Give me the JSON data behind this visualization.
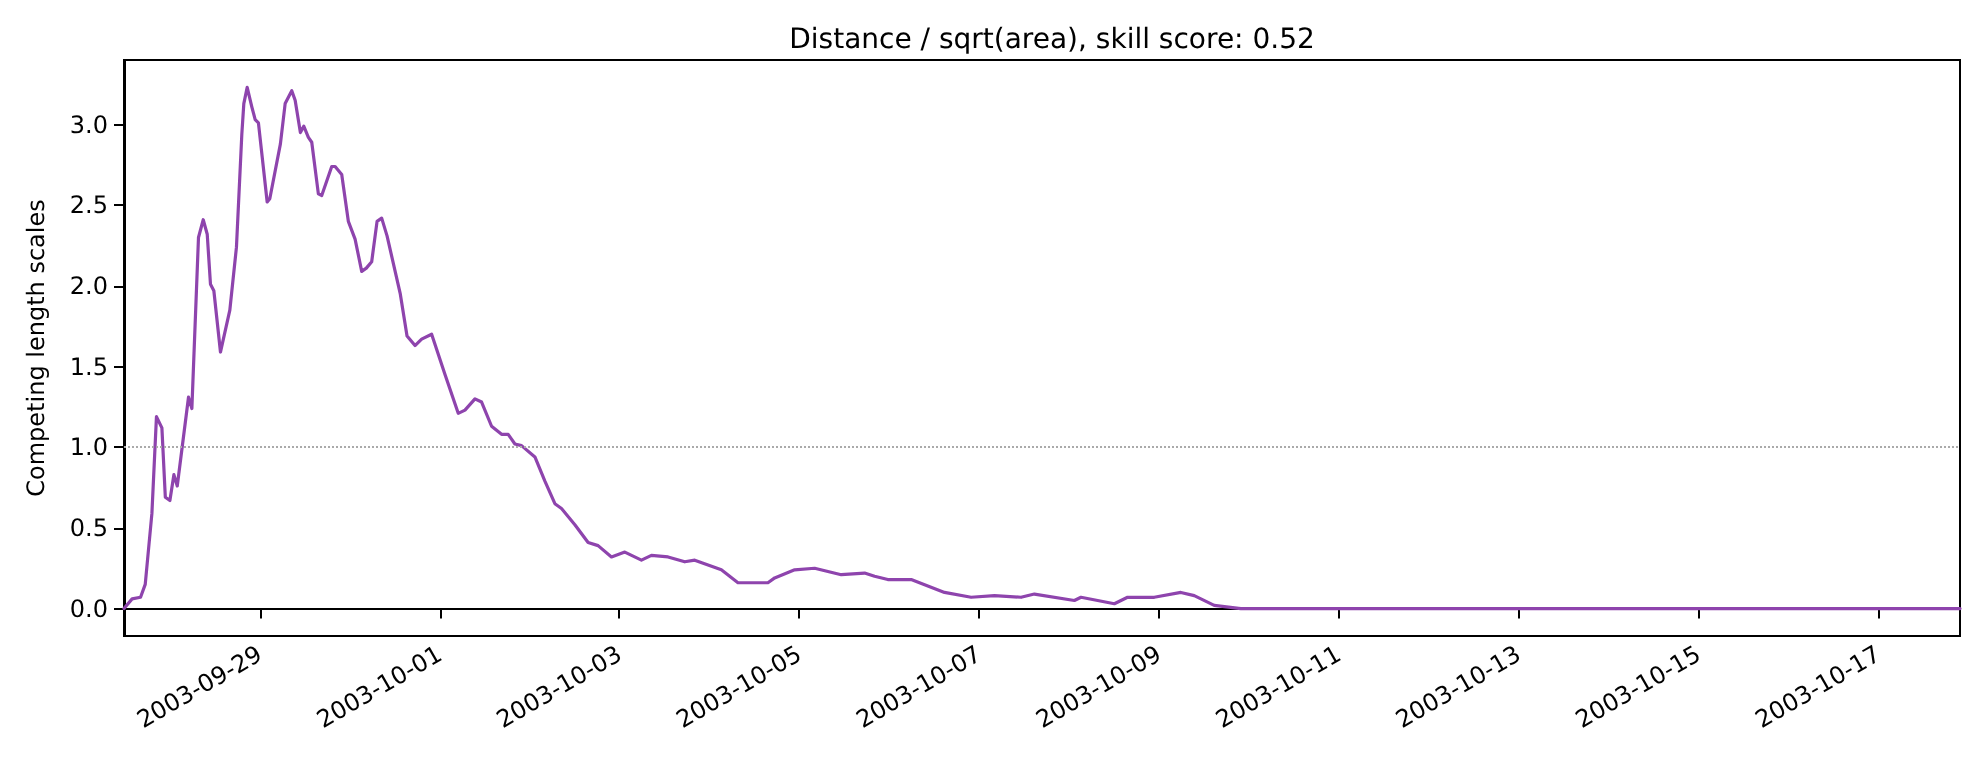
{
  "chart_data": {
    "type": "line",
    "title": "Distance / sqrt(area), skill score: 0.52",
    "ylabel": "Competing length scales",
    "x": [
      "2003-09-27T11:45",
      "2003-09-27T13:55",
      "2003-09-27T16:10",
      "2003-09-27T17:25",
      "2003-09-27T19:12",
      "2003-09-27T20:25",
      "2003-09-27T21:52",
      "2003-09-27T22:47",
      "2003-09-28T00:00",
      "2003-09-28T01:04",
      "2003-09-28T01:58",
      "2003-09-28T04:58",
      "2003-09-28T05:52",
      "2003-09-28T07:38",
      "2003-09-28T08:54",
      "2003-09-28T09:58",
      "2003-09-28T10:50",
      "2003-09-28T11:44",
      "2003-09-28T13:30",
      "2003-09-28T16:00",
      "2003-09-28T17:46",
      "2003-09-28T19:12",
      "2003-09-28T19:44",
      "2003-09-28T20:38",
      "2003-09-28T21:52",
      "2003-09-28T22:46",
      "2003-09-28T23:38",
      "2003-09-29T01:58",
      "2003-09-29T02:40",
      "2003-09-29T05:30",
      "2003-09-29T06:46",
      "2003-09-29T08:32",
      "2003-09-29T09:26",
      "2003-09-29T10:50",
      "2003-09-29T11:44",
      "2003-09-29T12:58",
      "2003-09-29T13:52",
      "2003-09-29T15:38",
      "2003-09-29T16:32",
      "2003-09-29T19:12",
      "2003-09-29T20:06",
      "2003-09-29T21:52",
      "2003-09-29T23:38",
      "2003-09-30T01:26",
      "2003-09-30T03:12",
      "2003-09-30T04:26",
      "2003-09-30T05:52",
      "2003-09-30T07:18",
      "2003-09-30T08:32",
      "2003-09-30T09:58",
      "2003-09-30T13:30",
      "2003-09-30T15:18",
      "2003-09-30T17:26",
      "2003-09-30T19:12",
      "2003-09-30T21:52",
      "2003-10-01T01:26",
      "2003-10-01T04:58",
      "2003-10-01T06:46",
      "2003-10-01T09:26",
      "2003-10-01T11:12",
      "2003-10-01T13:52",
      "2003-10-01T16:32",
      "2003-10-01T18:18",
      "2003-10-01T20:06",
      "2003-10-01T21:52",
      "2003-10-02T01:26",
      "2003-10-02T04:06",
      "2003-10-02T06:46",
      "2003-10-02T08:32",
      "2003-10-02T12:06",
      "2003-10-02T15:38",
      "2003-10-02T18:18",
      "2003-10-02T21:52",
      "2003-10-03T01:26",
      "2003-10-03T05:52",
      "2003-10-03T08:32",
      "2003-10-03T12:58",
      "2003-10-03T17:26",
      "2003-10-03T20:06",
      "2003-10-04T03:12",
      "2003-10-04T07:38",
      "2003-10-04T15:38",
      "2003-10-04T17:26",
      "2003-10-04T22:46",
      "2003-10-05T04:06",
      "2003-10-05T11:12",
      "2003-10-05T17:26",
      "2003-10-05T20:06",
      "2003-10-05T23:38",
      "2003-10-06T05:52",
      "2003-10-06T14:46",
      "2003-10-06T21:52",
      "2003-10-07T04:06",
      "2003-10-07T11:12",
      "2003-10-07T14:46",
      "2003-10-08T01:26",
      "2003-10-08T03:12",
      "2003-10-08T12:06",
      "2003-10-08T15:38",
      "2003-10-08T22:46",
      "2003-10-09T05:52",
      "2003-10-09T09:26",
      "2003-10-09T14:46",
      "2003-10-09T21:52",
      "2003-10-17T21:50"
    ],
    "series": [
      {
        "color": "#8e44ad",
        "values": [
          0,
          0.06,
          0.07,
          0.15,
          0.59,
          1.19,
          1.12,
          0.69,
          0.67,
          0.83,
          0.76,
          1.31,
          1.24,
          2.3,
          2.41,
          2.32,
          2.01,
          1.97,
          1.59,
          1.85,
          2.24,
          2.94,
          3.13,
          3.23,
          3.11,
          3.03,
          3.01,
          2.52,
          2.54,
          2.88,
          3.13,
          3.21,
          3.15,
          2.95,
          2.99,
          2.92,
          2.89,
          2.57,
          2.56,
          2.74,
          2.74,
          2.69,
          2.4,
          2.29,
          2.09,
          2.11,
          2.15,
          2.4,
          2.42,
          2.31,
          1.95,
          1.69,
          1.63,
          1.67,
          1.7,
          1.45,
          1.21,
          1.23,
          1.3,
          1.28,
          1.13,
          1.08,
          1.08,
          1.02,
          1.01,
          0.94,
          0.79,
          0.65,
          0.62,
          0.52,
          0.41,
          0.39,
          0.32,
          0.35,
          0.3,
          0.33,
          0.32,
          0.29,
          0.3,
          0.24,
          0.16,
          0.16,
          0.19,
          0.24,
          0.25,
          0.21,
          0.22,
          0.2,
          0.18,
          0.18,
          0.1,
          0.07,
          0.08,
          0.07,
          0.09,
          0.05,
          0.07,
          0.03,
          0.07,
          0.07,
          0.1,
          0.08,
          0.02,
          0.0,
          0.0
        ]
      }
    ],
    "xlim": [
      "2003-09-27T11:45",
      "2003-10-17T21:50"
    ],
    "xticks": [
      "2003-09-29",
      "2003-10-01",
      "2003-10-03",
      "2003-10-05",
      "2003-10-07",
      "2003-10-09",
      "2003-10-11",
      "2003-10-13",
      "2003-10-15",
      "2003-10-17"
    ],
    "ylim": [
      -0.17,
      3.4
    ],
    "yticks": [
      {
        "value": 0,
        "label": "0.0"
      },
      {
        "value": 0.5,
        "label": "0.5"
      },
      {
        "value": 1,
        "label": "1.0"
      },
      {
        "value": 1.5,
        "label": "1.5"
      },
      {
        "value": 2,
        "label": "2.0"
      },
      {
        "value": 2.5,
        "label": "2.5"
      },
      {
        "value": 3,
        "label": "3.0"
      }
    ],
    "ref_lines": [
      {
        "axis": "y",
        "value": 1,
        "color": "#aaaaaa",
        "line_style": "dotted"
      }
    ],
    "grid": false,
    "marker": "none",
    "line_style": "solid"
  }
}
